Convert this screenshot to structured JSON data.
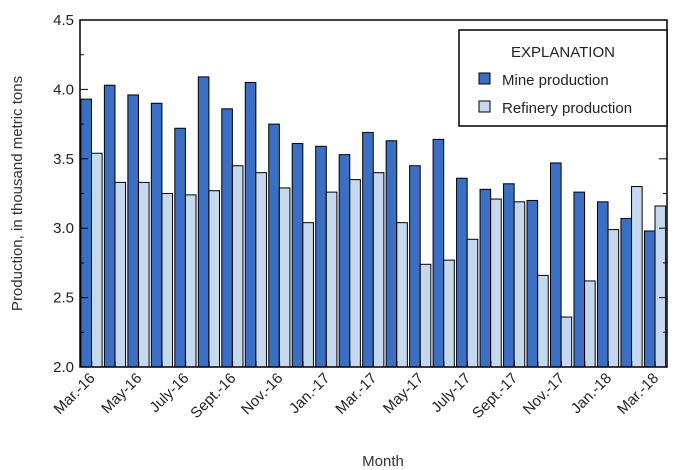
{
  "chart_data": {
    "type": "bar",
    "xlabel": "Month",
    "ylabel": "Production, in thousand metric tons",
    "ylim": [
      2.0,
      4.5
    ],
    "yticks": [
      "2.0",
      "2.5",
      "3.0",
      "3.5",
      "4.0",
      "4.5"
    ],
    "categories": [
      "Mar.-16",
      "Apr.-16",
      "May-16",
      "June-16",
      "July-16",
      "Aug.-16",
      "Sept.-16",
      "Oct.-16",
      "Nov.-16",
      "Dec.-16",
      "Jan.-17",
      "Feb.-17",
      "Mar.-17",
      "Apr.-17",
      "May-17",
      "June-17",
      "July-17",
      "Aug.-17",
      "Sept.-17",
      "Oct.-17",
      "Nov.-17",
      "Dec.-17",
      "Jan.-18",
      "Feb.-18",
      "Mar.-18"
    ],
    "category_labels": [
      "Mar.-16",
      "",
      "May-16",
      "",
      "July-16",
      "",
      "Sept.-16",
      "",
      "Nov.-16",
      "",
      "Jan.-17",
      "",
      "Mar.-17",
      "",
      "May-17",
      "",
      "July-17",
      "",
      "Sept.-17",
      "",
      "Nov.-17",
      "",
      "Jan.-18",
      "",
      "Mar.-18"
    ],
    "legend": {
      "title": "EXPLANATION",
      "position": "top-right"
    },
    "grid": false,
    "series": [
      {
        "name": "Mine production",
        "color": "#3a6fc4",
        "values": [
          3.93,
          4.03,
          3.96,
          3.9,
          3.72,
          4.09,
          3.86,
          4.05,
          3.75,
          3.61,
          3.59,
          3.53,
          3.69,
          3.63,
          3.45,
          3.64,
          3.36,
          3.28,
          3.32,
          3.2,
          3.47,
          3.26,
          3.19,
          3.07,
          2.98
        ]
      },
      {
        "name": "Refinery production",
        "color": "#c6d8ee",
        "values": [
          3.54,
          3.33,
          3.33,
          3.25,
          3.24,
          3.27,
          3.45,
          3.4,
          3.29,
          3.04,
          3.26,
          3.35,
          3.4,
          3.04,
          2.74,
          2.77,
          2.92,
          3.21,
          3.19,
          2.66,
          2.36,
          2.62,
          2.99,
          3.3,
          3.16
        ]
      }
    ]
  }
}
